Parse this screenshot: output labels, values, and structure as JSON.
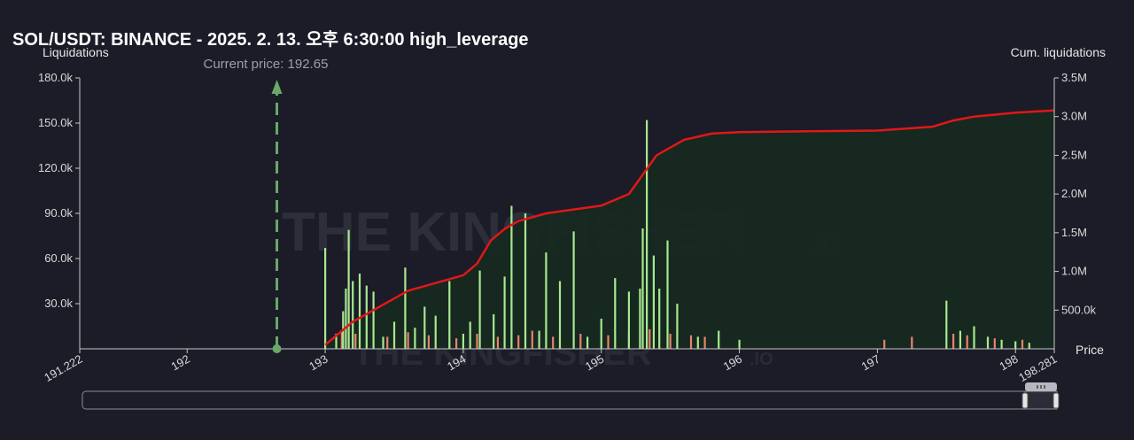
{
  "title": "SOL/USDT: BINANCE - 2025. 2. 13. 오후 6:30:00 high_leverage",
  "watermark": "THE KINGFISHER",
  "watermark_suffix": ".IO",
  "colors": {
    "background": "#1b1c28",
    "long_bar": "#a8e890",
    "short_bar": "#e8826f",
    "cum_line": "#e01818",
    "cum_fill": "#16291f",
    "price_marker": "#6aa86a"
  },
  "chart_data": {
    "type": "bar",
    "title": "SOL/USDT: BINANCE - 2025. 2. 13. 오후 6:30:00 high_leverage",
    "xlabel": "Price",
    "ylabel": "Liquidations",
    "y2label": "Cum. liquidations",
    "xlim": [
      191.222,
      198.281
    ],
    "ylim": [
      0,
      180000
    ],
    "y2lim": [
      0,
      3500000
    ],
    "x_ticks": [
      "191.222",
      "192",
      "193",
      "194",
      "195",
      "196",
      "197",
      "198",
      "198.281"
    ],
    "x_tick_values": [
      191.222,
      192,
      193,
      194,
      195,
      196,
      197,
      198,
      198.281
    ],
    "y_ticks": [
      "30.0k",
      "60.0k",
      "90.0k",
      "120.0k",
      "150.0k",
      "180.0k"
    ],
    "y_tick_values": [
      30000,
      60000,
      90000,
      120000,
      150000,
      180000
    ],
    "y2_ticks": [
      "500.0k",
      "1.0M",
      "1.5M",
      "2.0M",
      "2.5M",
      "3.0M",
      "3.5M"
    ],
    "y2_tick_values": [
      500000,
      1000000,
      1500000,
      2000000,
      2500000,
      3000000,
      3500000
    ],
    "current_price": 192.65,
    "current_price_label": "Current price: 192.65",
    "long_bars": {
      "x": [
        193.0,
        193.08,
        193.13,
        193.15,
        193.17,
        193.2,
        193.25,
        193.3,
        193.35,
        193.42,
        193.5,
        193.58,
        193.65,
        193.72,
        193.8,
        193.9,
        194.0,
        194.05,
        194.12,
        194.22,
        194.3,
        194.35,
        194.45,
        194.55,
        194.6,
        194.7,
        194.8,
        194.9,
        195.0,
        195.1,
        195.2,
        195.28,
        195.3,
        195.33,
        195.38,
        195.42,
        195.48,
        195.55,
        195.7,
        195.85,
        196.0,
        197.5,
        197.6,
        197.7,
        197.8,
        197.9,
        198.0,
        198.1
      ],
      "values": [
        67000,
        10000,
        25000,
        40000,
        79000,
        45000,
        50000,
        42000,
        38000,
        8000,
        18000,
        54000,
        14000,
        28000,
        22000,
        45000,
        10000,
        18000,
        52000,
        23000,
        48000,
        95000,
        90000,
        12000,
        64000,
        45000,
        78000,
        8000,
        20000,
        47000,
        38000,
        40000,
        80000,
        152000,
        62000,
        40000,
        72000,
        30000,
        8000,
        12000,
        6000,
        32000,
        12000,
        15000,
        8000,
        6000,
        5000,
        4000
      ]
    },
    "short_bars": {
      "x": [
        193.12,
        193.22,
        193.45,
        193.6,
        193.75,
        193.95,
        194.1,
        194.25,
        194.4,
        194.5,
        194.65,
        194.85,
        195.05,
        195.2,
        195.35,
        195.5,
        195.65,
        195.75,
        197.05,
        197.25,
        197.55,
        197.65,
        197.85,
        198.05
      ],
      "values": [
        12000,
        10000,
        8000,
        11000,
        9000,
        7000,
        10000,
        8000,
        9000,
        12000,
        8000,
        10000,
        9000,
        11000,
        13000,
        10000,
        9000,
        8000,
        6000,
        8000,
        10000,
        9000,
        7000,
        6000
      ]
    },
    "cumulative": {
      "x": [
        193.0,
        193.1,
        193.2,
        193.3,
        193.4,
        193.5,
        193.6,
        193.7,
        193.8,
        193.9,
        194.0,
        194.1,
        194.2,
        194.3,
        194.4,
        194.5,
        194.6,
        194.8,
        195.0,
        195.2,
        195.3,
        195.4,
        195.5,
        195.6,
        195.8,
        196.0,
        196.5,
        197.0,
        197.4,
        197.55,
        197.7,
        198.0,
        198.281
      ],
      "values": [
        50000,
        200000,
        350000,
        450000,
        550000,
        650000,
        750000,
        800000,
        850000,
        900000,
        950000,
        1100000,
        1400000,
        1550000,
        1650000,
        1700000,
        1750000,
        1800000,
        1850000,
        2000000,
        2250000,
        2500000,
        2600000,
        2700000,
        2780000,
        2800000,
        2810000,
        2820000,
        2870000,
        2950000,
        3000000,
        3050000,
        3080000
      ]
    }
  }
}
